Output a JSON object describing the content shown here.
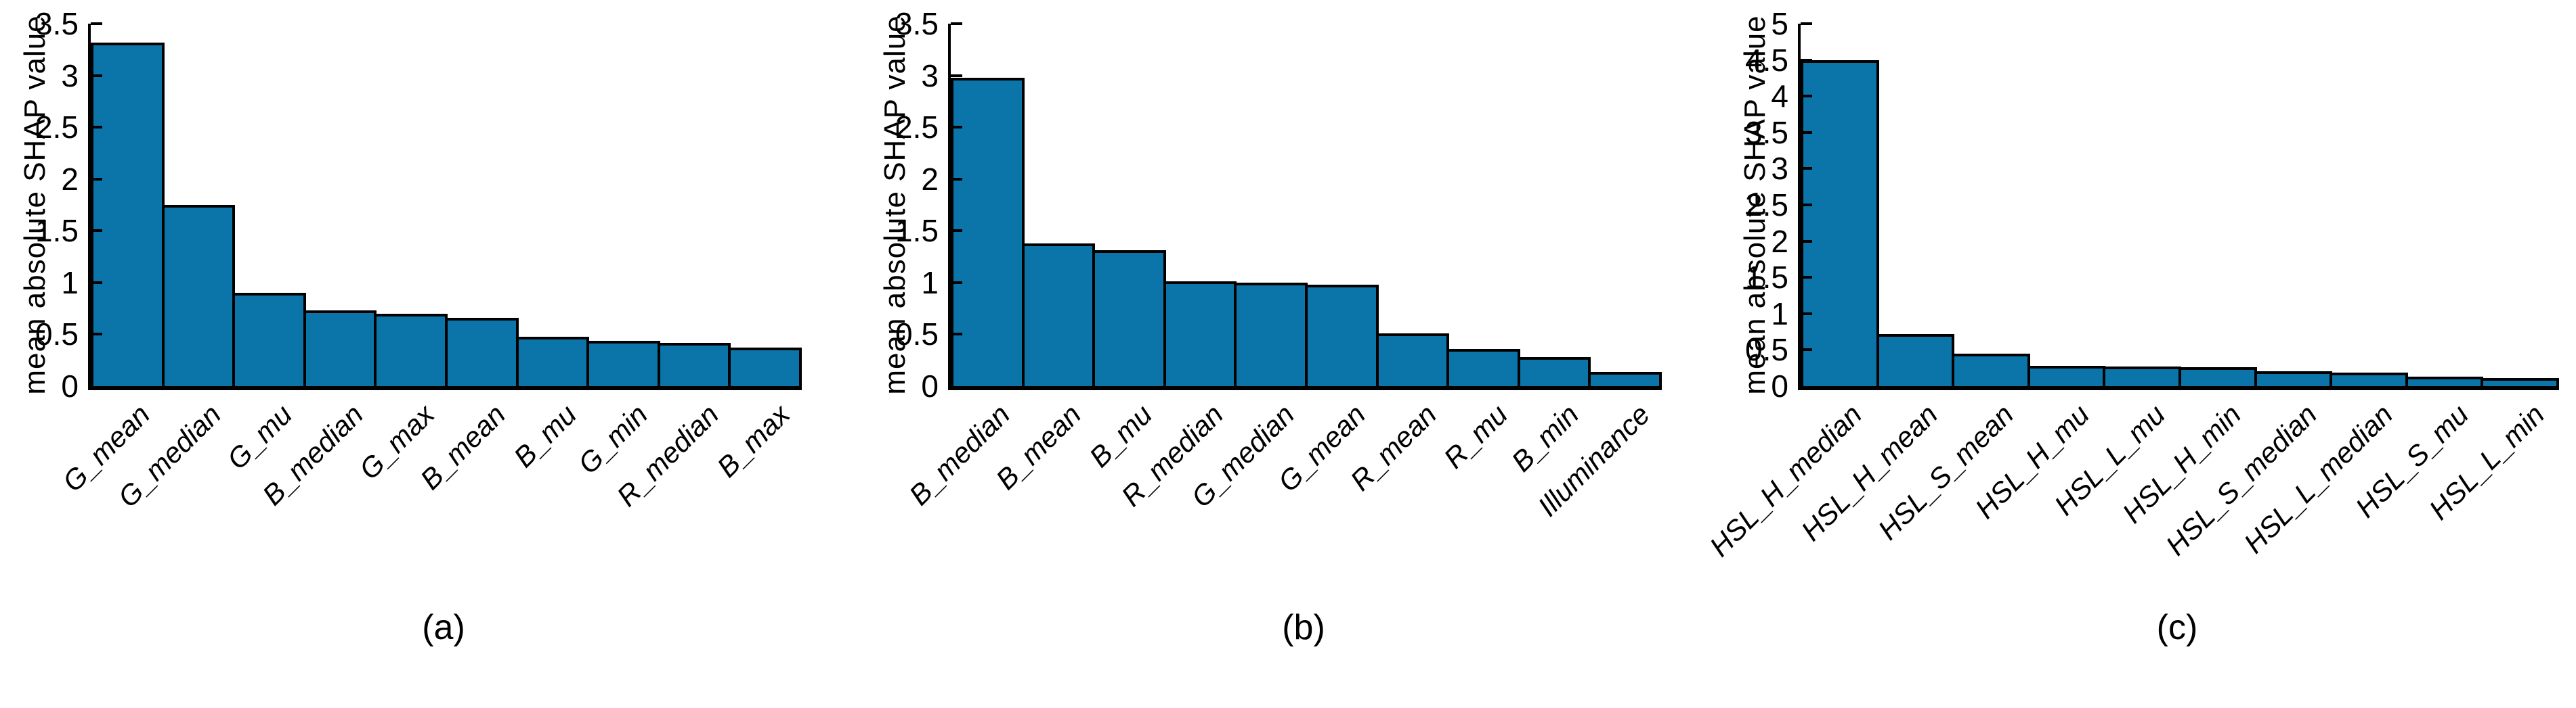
{
  "figure": {
    "y_axis_title": "mean absolute SHAP value",
    "bar_color": "#0B74A9",
    "bar_edge_color": "#000000",
    "axis_color": "#000000"
  },
  "chart_data": [
    {
      "type": "bar",
      "caption": "(a)",
      "ylabel": "mean absolute SHAP value",
      "categories": [
        "G_mean",
        "G_median",
        "G_mu",
        "B_median",
        "G_max",
        "B_mean",
        "B_mu",
        "G_min",
        "R_median",
        "B_max"
      ],
      "values": [
        3.32,
        1.75,
        0.9,
        0.73,
        0.7,
        0.66,
        0.48,
        0.44,
        0.42,
        0.37
      ],
      "ylim": [
        0,
        3.5
      ],
      "ytick_step": 0.5,
      "xlabel": "",
      "grid": false,
      "legend": null,
      "bar_color": "#0B74A9"
    },
    {
      "type": "bar",
      "caption": "(b)",
      "ylabel": "mean absolute SHAP value",
      "categories": [
        "B_median",
        "B_mean",
        "B_mu",
        "R_median",
        "G_median",
        "G_mean",
        "R_mean",
        "R_mu",
        "B_min",
        "Illuminance"
      ],
      "values": [
        2.98,
        1.38,
        1.31,
        1.01,
        1.0,
        0.98,
        0.51,
        0.36,
        0.28,
        0.14
      ],
      "ylim": [
        0,
        3.5
      ],
      "ytick_step": 0.5,
      "xlabel": "",
      "grid": false,
      "legend": null,
      "bar_color": "#0B74A9"
    },
    {
      "type": "bar",
      "caption": "(c)",
      "ylabel": "mean absolute SHAP value",
      "categories": [
        "HSL_H_median",
        "HSL_H_mean",
        "HSL_S_mean",
        "HSL_H_mu",
        "HSL_L_mu",
        "HSL_H_min",
        "HSL_S_median",
        "HSL_L_median",
        "HSL_S_mu",
        "HSL_L_min"
      ],
      "values": [
        4.5,
        0.72,
        0.45,
        0.28,
        0.27,
        0.26,
        0.21,
        0.19,
        0.13,
        0.11
      ],
      "ylim": [
        0,
        5
      ],
      "ytick_step": 0.5,
      "xlabel": "",
      "grid": false,
      "legend": null,
      "bar_color": "#0B74A9"
    }
  ]
}
